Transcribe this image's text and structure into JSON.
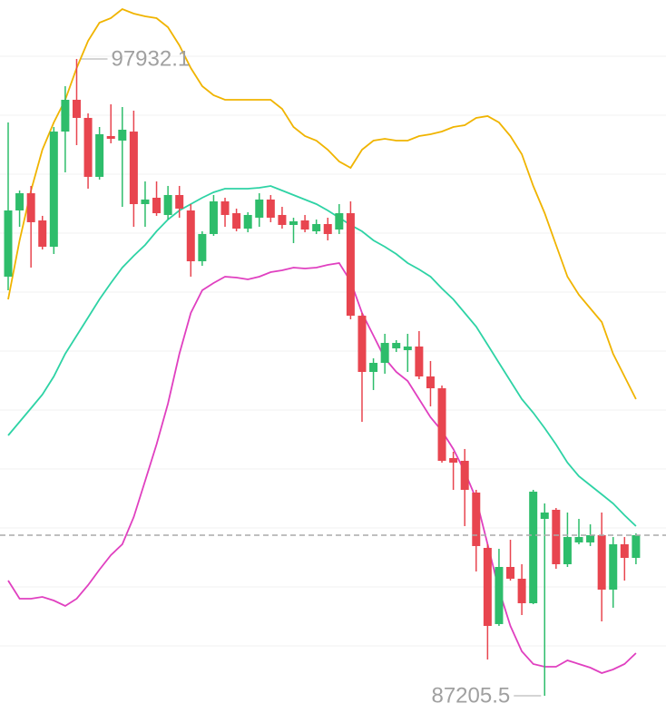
{
  "chart_data": {
    "type": "candlestick",
    "categories": [
      null,
      null,
      null,
      null,
      null,
      null,
      null,
      null,
      null,
      null,
      null,
      null,
      null,
      null,
      null,
      null,
      null,
      null,
      null,
      null,
      null,
      null,
      null,
      null,
      null,
      null,
      null,
      null,
      null,
      null,
      null,
      null,
      null,
      null,
      null,
      null,
      null,
      null,
      null,
      null,
      null,
      null,
      null,
      null,
      null,
      null,
      null,
      null,
      null,
      null,
      null,
      null,
      null,
      null,
      null,
      null
    ],
    "open": [
      94265,
      95380,
      95670,
      95212,
      94769,
      96709,
      97244,
      96939,
      95946,
      96633,
      96557,
      96709,
      95487,
      95594,
      95304,
      95640,
      95380,
      94524,
      94983,
      95533,
      95334,
      95074,
      95258,
      95564,
      95304,
      95136,
      95212,
      95029,
      95151,
      95059,
      95334,
      93607,
      92660,
      92813,
      93057,
      93027,
      93088,
      92584,
      92385,
      91209,
      91163,
      90628,
      89696,
      88413,
      89375,
      89177,
      88764,
      90185,
      90338,
      89421,
      89788,
      89788,
      89910,
      88993,
      89757,
      89528
    ],
    "high": [
      96862,
      95716,
      95793,
      95289,
      96786,
      97473,
      97932.1,
      97015,
      96786,
      97168,
      97122,
      97061,
      95869,
      95869,
      95793,
      95793,
      95487,
      95029,
      95640,
      95594,
      95411,
      95350,
      95670,
      95640,
      95441,
      95258,
      95304,
      95227,
      95258,
      95487,
      95533,
      93653,
      92889,
      93302,
      93195,
      93302,
      93348,
      92844,
      92431,
      91316,
      91362,
      90674,
      89757,
      89681,
      89833,
      89421,
      90674,
      90445,
      90368,
      90292,
      90185,
      90093,
      90292,
      89879,
      89879,
      89940
    ],
    "low": [
      94035,
      95105,
      94418,
      94723,
      94647,
      96022,
      96480,
      95747,
      95900,
      96511,
      95441,
      95105,
      95105,
      95289,
      95227,
      95258,
      94265,
      94448,
      94952,
      95105,
      95029,
      95013,
      95105,
      95182,
      95074,
      94830,
      95013,
      94983,
      94876,
      94983,
      93547,
      91820,
      92355,
      92630,
      92996,
      92660,
      92538,
      92080,
      91132,
      90674,
      90063,
      89299,
      87816,
      88382,
      89146,
      88565,
      88748,
      87205.5,
      89344,
      89375,
      89757,
      89727,
      88458,
      88688,
      89146,
      89421
    ],
    "close": [
      95380,
      95670,
      95182,
      94769,
      96709,
      97244,
      96939,
      95946,
      96664,
      96587,
      96740,
      95487,
      95564,
      95334,
      95640,
      95411,
      94524,
      94983,
      95533,
      95304,
      95074,
      95304,
      95564,
      95258,
      95136,
      95197,
      95059,
      95151,
      94983,
      95334,
      93607,
      92660,
      92813,
      93149,
      93149,
      93088,
      92584,
      92385,
      91163,
      91132,
      90674,
      89727,
      88382,
      89375,
      89177,
      88764,
      90643,
      90292,
      89421,
      89879,
      89879,
      89910,
      88993,
      89757,
      89528,
      89910
    ],
    "up_color": "#2ebd6b",
    "down_color": "#e8454f",
    "bands": [
      {
        "color": "#f0b400",
        "values": [
          93883,
          94876,
          95716,
          96404,
          96862,
          97244,
          97779,
          98237,
          98543,
          98619,
          98772,
          98696,
          98650,
          98619,
          98467,
          98161,
          97779,
          97473,
          97320,
          97244,
          97244,
          97244,
          97244,
          97244,
          97091,
          96786,
          96633,
          96557,
          96404,
          96205,
          96098,
          96404,
          96557,
          96587,
          96557,
          96557,
          96633,
          96664,
          96709,
          96786,
          96816,
          96939,
          96969,
          96862,
          96633,
          96327,
          95793,
          95334,
          94799,
          94265,
          93959,
          93730,
          93501,
          92966,
          92584,
          92202
        ]
      },
      {
        "color": "#2ed3a5",
        "values": [
          91591,
          91820,
          92049,
          92278,
          92584,
          92966,
          93271,
          93577,
          93883,
          94158,
          94418,
          94616,
          94799,
          95029,
          95227,
          95380,
          95487,
          95594,
          95686,
          95747,
          95747,
          95747,
          95762,
          95793,
          95716,
          95640,
          95564,
          95487,
          95380,
          95258,
          95136,
          95029,
          94876,
          94769,
          94647,
          94494,
          94387,
          94265,
          94066,
          93883,
          93653,
          93424,
          93119,
          92813,
          92508,
          92202,
          91973,
          91713,
          91438,
          91132,
          90903,
          90750,
          90597,
          90445,
          90246,
          90063
        ]
      },
      {
        "color": "#e040c0",
        "values": [
          89146,
          88840,
          88840,
          88871,
          88810,
          88718,
          88840,
          89069,
          89329,
          89574,
          89757,
          90216,
          90827,
          91438,
          92125,
          92966,
          93653,
          94035,
          94158,
          94265,
          94249,
          94219,
          94265,
          94341,
          94372,
          94418,
          94402,
          94418,
          94463,
          94494,
          94188,
          93653,
          93271,
          92889,
          92660,
          92508,
          92202,
          91896,
          91667,
          91362,
          90979,
          90521,
          89757,
          88993,
          88382,
          87954,
          87740,
          87694,
          87694,
          87801,
          87740,
          87679,
          87587,
          87648,
          87740,
          87924
        ]
      }
    ],
    "annotations": [
      {
        "label": "97932.1",
        "value": 97932.1
      },
      {
        "label": "87205.5",
        "value": 87205.5
      }
    ],
    "ylim": [
      86915,
      98925
    ],
    "yticks": [
      97978,
      96984,
      95991,
      94998,
      94005,
      93012,
      92018,
      91025,
      90032,
      89039,
      88046
    ],
    "grid": true
  }
}
